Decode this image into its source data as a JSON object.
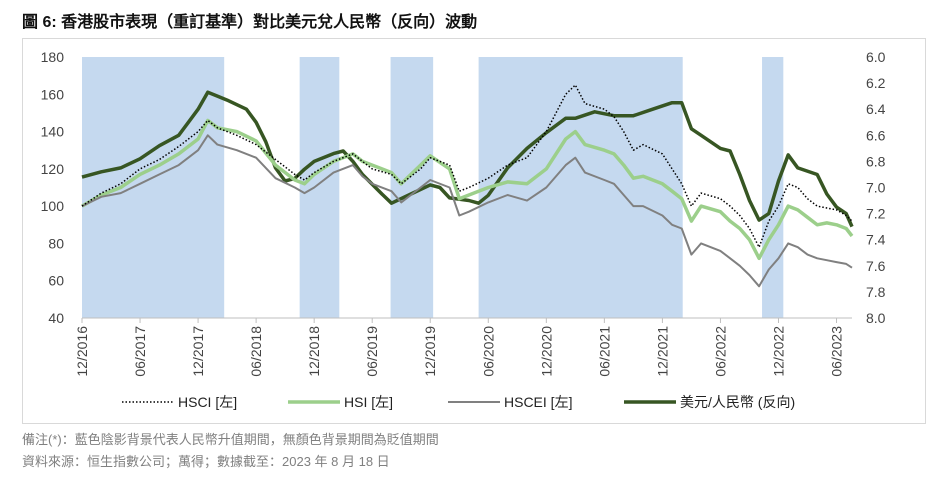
{
  "title": "圖 6:  香港股市表現（重訂基準）對比美元兌人民幣（反向）波動",
  "notes": [
    "備注(*)：藍色陰影背景代表人民幣升值期間，無顏色背景期間為貶值期間",
    "資料來源：恒生指數公司；萬得；數據截至：2023 年 8 月 18 日"
  ],
  "chart_data": {
    "type": "line",
    "x_unit": "months since 12/2016",
    "x_ticks": [
      {
        "m": 0,
        "label": "12/2016"
      },
      {
        "m": 6,
        "label": "06/2017"
      },
      {
        "m": 12,
        "label": "12/2017"
      },
      {
        "m": 18,
        "label": "06/2018"
      },
      {
        "m": 24,
        "label": "12/2018"
      },
      {
        "m": 30,
        "label": "06/2019"
      },
      {
        "m": 36,
        "label": "12/2019"
      },
      {
        "m": 42,
        "label": "06/2020"
      },
      {
        "m": 48,
        "label": "12/2020"
      },
      {
        "m": 54,
        "label": "06/2021"
      },
      {
        "m": 60,
        "label": "12/2021"
      },
      {
        "m": 66,
        "label": "06/2022"
      },
      {
        "m": 72,
        "label": "12/2022"
      },
      {
        "m": 78,
        "label": "06/2023"
      }
    ],
    "xlim": [
      0,
      79.6
    ],
    "y_left": {
      "lim": [
        40,
        180
      ],
      "ticks": [
        40,
        60,
        80,
        100,
        120,
        140,
        160,
        180
      ]
    },
    "y_right": {
      "lim": [
        6.0,
        8.0
      ],
      "reversed": true,
      "ticks": [
        "6.0",
        "6.2",
        "6.4",
        "6.6",
        "6.8",
        "7.0",
        "7.2",
        "7.4",
        "7.6",
        "7.8",
        "8.0"
      ]
    },
    "shaded_periods_months": [
      [
        0,
        14.7
      ],
      [
        22.5,
        26.6
      ],
      [
        31.9,
        36.3
      ],
      [
        41,
        62.1
      ],
      [
        70.3,
        72.5
      ]
    ],
    "series": [
      {
        "name": "HSCI [左]",
        "axis": "left",
        "color": "#000000",
        "style": "dotted",
        "points": [
          [
            0,
            100
          ],
          [
            2,
            107
          ],
          [
            4,
            112
          ],
          [
            6,
            120
          ],
          [
            8,
            125
          ],
          [
            10,
            132
          ],
          [
            12,
            140
          ],
          [
            13,
            146
          ],
          [
            14,
            142
          ],
          [
            16,
            138
          ],
          [
            18,
            133
          ],
          [
            20,
            125
          ],
          [
            22,
            117
          ],
          [
            23,
            114
          ],
          [
            24,
            118
          ],
          [
            26,
            124
          ],
          [
            28,
            128
          ],
          [
            29,
            124
          ],
          [
            30,
            120
          ],
          [
            32,
            117
          ],
          [
            33,
            112
          ],
          [
            35,
            120
          ],
          [
            36,
            126
          ],
          [
            38,
            122
          ],
          [
            39,
            108
          ],
          [
            40,
            110
          ],
          [
            42,
            115
          ],
          [
            44,
            122
          ],
          [
            46,
            126
          ],
          [
            48,
            140
          ],
          [
            50,
            160
          ],
          [
            51,
            165
          ],
          [
            52,
            155
          ],
          [
            54,
            152
          ],
          [
            55,
            148
          ],
          [
            56,
            140
          ],
          [
            57,
            130
          ],
          [
            58,
            133
          ],
          [
            60,
            128
          ],
          [
            61,
            120
          ],
          [
            62,
            112
          ],
          [
            63,
            100
          ],
          [
            64,
            107
          ],
          [
            66,
            104
          ],
          [
            67,
            100
          ],
          [
            68,
            95
          ],
          [
            69,
            88
          ],
          [
            70,
            78
          ],
          [
            71,
            92
          ],
          [
            72,
            100
          ],
          [
            73,
            112
          ],
          [
            74,
            110
          ],
          [
            75,
            104
          ],
          [
            76,
            100
          ],
          [
            77,
            99
          ],
          [
            78,
            98
          ],
          [
            79,
            95
          ],
          [
            79.6,
            92
          ]
        ]
      },
      {
        "name": "HSI [左]",
        "axis": "left",
        "color": "#9ccf8b",
        "style": "solid",
        "points": [
          [
            0,
            100
          ],
          [
            2,
            106
          ],
          [
            4,
            110
          ],
          [
            6,
            117
          ],
          [
            8,
            122
          ],
          [
            10,
            128
          ],
          [
            12,
            136
          ],
          [
            13,
            146
          ],
          [
            14,
            142
          ],
          [
            16,
            140
          ],
          [
            18,
            135
          ],
          [
            20,
            122
          ],
          [
            22,
            114
          ],
          [
            23,
            112
          ],
          [
            24,
            117
          ],
          [
            26,
            124
          ],
          [
            28,
            128
          ],
          [
            29,
            124
          ],
          [
            30,
            122
          ],
          [
            32,
            118
          ],
          [
            33,
            112
          ],
          [
            35,
            122
          ],
          [
            36,
            127
          ],
          [
            38,
            120
          ],
          [
            39,
            104
          ],
          [
            40,
            106
          ],
          [
            42,
            110
          ],
          [
            44,
            113
          ],
          [
            46,
            112
          ],
          [
            48,
            120
          ],
          [
            50,
            136
          ],
          [
            51,
            140
          ],
          [
            52,
            133
          ],
          [
            54,
            130
          ],
          [
            55,
            128
          ],
          [
            56,
            122
          ],
          [
            57,
            115
          ],
          [
            58,
            116
          ],
          [
            60,
            112
          ],
          [
            61,
            108
          ],
          [
            62,
            104
          ],
          [
            63,
            92
          ],
          [
            64,
            100
          ],
          [
            66,
            97
          ],
          [
            67,
            92
          ],
          [
            68,
            88
          ],
          [
            69,
            82
          ],
          [
            70,
            72
          ],
          [
            71,
            82
          ],
          [
            72,
            90
          ],
          [
            73,
            100
          ],
          [
            74,
            98
          ],
          [
            75,
            94
          ],
          [
            76,
            90
          ],
          [
            77,
            91
          ],
          [
            78,
            90
          ],
          [
            79,
            88
          ],
          [
            79.6,
            84
          ]
        ]
      },
      {
        "name": "HSCEI [左]",
        "axis": "left",
        "color": "#808080",
        "style": "solid",
        "points": [
          [
            0,
            100
          ],
          [
            2,
            105
          ],
          [
            4,
            107
          ],
          [
            6,
            112
          ],
          [
            8,
            117
          ],
          [
            10,
            122
          ],
          [
            12,
            130
          ],
          [
            13,
            138
          ],
          [
            14,
            133
          ],
          [
            16,
            130
          ],
          [
            18,
            126
          ],
          [
            20,
            115
          ],
          [
            22,
            110
          ],
          [
            23,
            107
          ],
          [
            24,
            110
          ],
          [
            26,
            118
          ],
          [
            28,
            122
          ],
          [
            29,
            116
          ],
          [
            30,
            112
          ],
          [
            32,
            108
          ],
          [
            33,
            102
          ],
          [
            35,
            110
          ],
          [
            36,
            114
          ],
          [
            38,
            110
          ],
          [
            39,
            95
          ],
          [
            40,
            97
          ],
          [
            42,
            102
          ],
          [
            44,
            106
          ],
          [
            46,
            103
          ],
          [
            48,
            110
          ],
          [
            50,
            122
          ],
          [
            51,
            126
          ],
          [
            52,
            118
          ],
          [
            54,
            114
          ],
          [
            55,
            112
          ],
          [
            56,
            106
          ],
          [
            57,
            100
          ],
          [
            58,
            100
          ],
          [
            60,
            95
          ],
          [
            61,
            90
          ],
          [
            62,
            88
          ],
          [
            63,
            74
          ],
          [
            64,
            80
          ],
          [
            66,
            76
          ],
          [
            67,
            72
          ],
          [
            68,
            68
          ],
          [
            69,
            63
          ],
          [
            70,
            57
          ],
          [
            71,
            66
          ],
          [
            72,
            72
          ],
          [
            73,
            80
          ],
          [
            74,
            78
          ],
          [
            75,
            74
          ],
          [
            76,
            72
          ],
          [
            77,
            71
          ],
          [
            78,
            70
          ],
          [
            79,
            69
          ],
          [
            79.6,
            67
          ]
        ]
      },
      {
        "name": "美元/人民幣 (反向)",
        "axis": "right",
        "color": "#375623",
        "style": "solid",
        "points": [
          [
            0,
            6.92
          ],
          [
            2,
            6.88
          ],
          [
            4,
            6.85
          ],
          [
            6,
            6.78
          ],
          [
            8,
            6.68
          ],
          [
            10,
            6.6
          ],
          [
            11,
            6.5
          ],
          [
            12,
            6.4
          ],
          [
            13,
            6.27
          ],
          [
            14,
            6.3
          ],
          [
            15,
            6.33
          ],
          [
            17,
            6.4
          ],
          [
            18,
            6.5
          ],
          [
            19,
            6.65
          ],
          [
            20,
            6.85
          ],
          [
            21,
            6.95
          ],
          [
            22,
            6.93
          ],
          [
            23,
            6.86
          ],
          [
            24,
            6.8
          ],
          [
            26,
            6.74
          ],
          [
            27,
            6.72
          ],
          [
            28,
            6.8
          ],
          [
            29,
            6.9
          ],
          [
            31,
            7.05
          ],
          [
            32,
            7.12
          ],
          [
            34,
            7.05
          ],
          [
            36,
            6.98
          ],
          [
            37,
            7.0
          ],
          [
            38,
            7.08
          ],
          [
            40,
            7.1
          ],
          [
            41,
            7.12
          ],
          [
            42,
            7.06
          ],
          [
            44,
            6.85
          ],
          [
            46,
            6.7
          ],
          [
            48,
            6.58
          ],
          [
            50,
            6.47
          ],
          [
            51,
            6.47
          ],
          [
            53,
            6.42
          ],
          [
            55,
            6.45
          ],
          [
            57,
            6.45
          ],
          [
            59,
            6.4
          ],
          [
            61,
            6.35
          ],
          [
            62,
            6.35
          ],
          [
            63,
            6.55
          ],
          [
            64,
            6.6
          ],
          [
            66,
            6.7
          ],
          [
            67,
            6.72
          ],
          [
            68,
            6.9
          ],
          [
            69,
            7.1
          ],
          [
            70,
            7.25
          ],
          [
            71,
            7.2
          ],
          [
            72,
            6.95
          ],
          [
            73,
            6.75
          ],
          [
            74,
            6.85
          ],
          [
            76,
            6.9
          ],
          [
            77,
            7.05
          ],
          [
            78,
            7.15
          ],
          [
            79,
            7.2
          ],
          [
            79.6,
            7.3
          ]
        ]
      }
    ]
  }
}
